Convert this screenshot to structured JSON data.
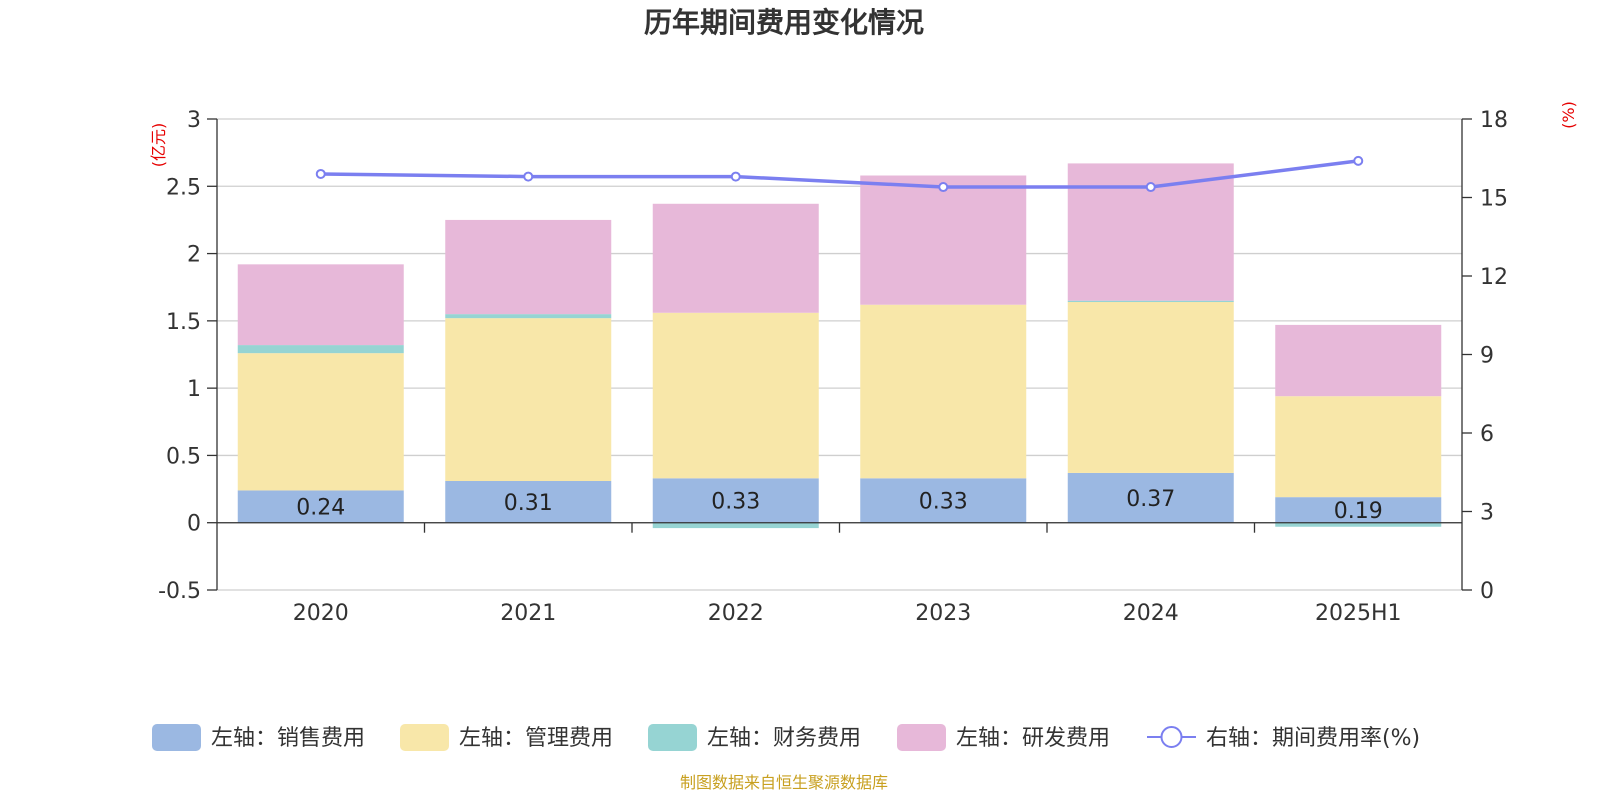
{
  "chart_data": {
    "type": "bar",
    "title": "历年期间费用变化情况",
    "left_unit": "(亿元)",
    "right_unit": "(%)",
    "categories": [
      "2020",
      "2021",
      "2022",
      "2023",
      "2024",
      "2025H1"
    ],
    "left_ylim": [
      -0.5,
      3
    ],
    "left_yticks": [
      "3",
      "2.5",
      "2",
      "1.5",
      "1",
      "0.5",
      "0",
      "-0.5"
    ],
    "right_ylim": [
      0,
      18
    ],
    "right_yticks": [
      "18",
      "15",
      "12",
      "9",
      "6",
      "3",
      "0"
    ],
    "grid": true,
    "legend_position": "bottom",
    "series": [
      {
        "name": "左轴：销售费用",
        "type": "bar",
        "axis": "left",
        "color": "#9bb8e2",
        "values": [
          0.24,
          0.31,
          0.33,
          0.33,
          0.37,
          0.19
        ],
        "value_labels": [
          "0.24",
          "0.31",
          "0.33",
          "0.33",
          "0.37",
          "0.19"
        ]
      },
      {
        "name": "左轴：管理费用",
        "type": "bar",
        "axis": "left",
        "color": "#f8e7a9",
        "values": [
          1.02,
          1.21,
          1.23,
          1.29,
          1.27,
          0.75
        ]
      },
      {
        "name": "左轴：财务费用",
        "type": "bar",
        "axis": "left",
        "color": "#96d4d3",
        "values": [
          0.06,
          0.03,
          -0.04,
          -0.005,
          0.01,
          -0.03
        ]
      },
      {
        "name": "左轴：研发费用",
        "type": "bar",
        "axis": "left",
        "color": "#e7b8d9",
        "values": [
          0.6,
          0.7,
          0.81,
          0.96,
          1.02,
          0.53
        ]
      },
      {
        "name": "右轴：期间费用率(%)",
        "type": "line",
        "axis": "right",
        "color": "#7b7ff0",
        "values": [
          15.9,
          15.8,
          15.8,
          15.4,
          15.4,
          16.4
        ]
      }
    ]
  },
  "footer": {
    "source": "制图数据来自恒生聚源数据库"
  }
}
